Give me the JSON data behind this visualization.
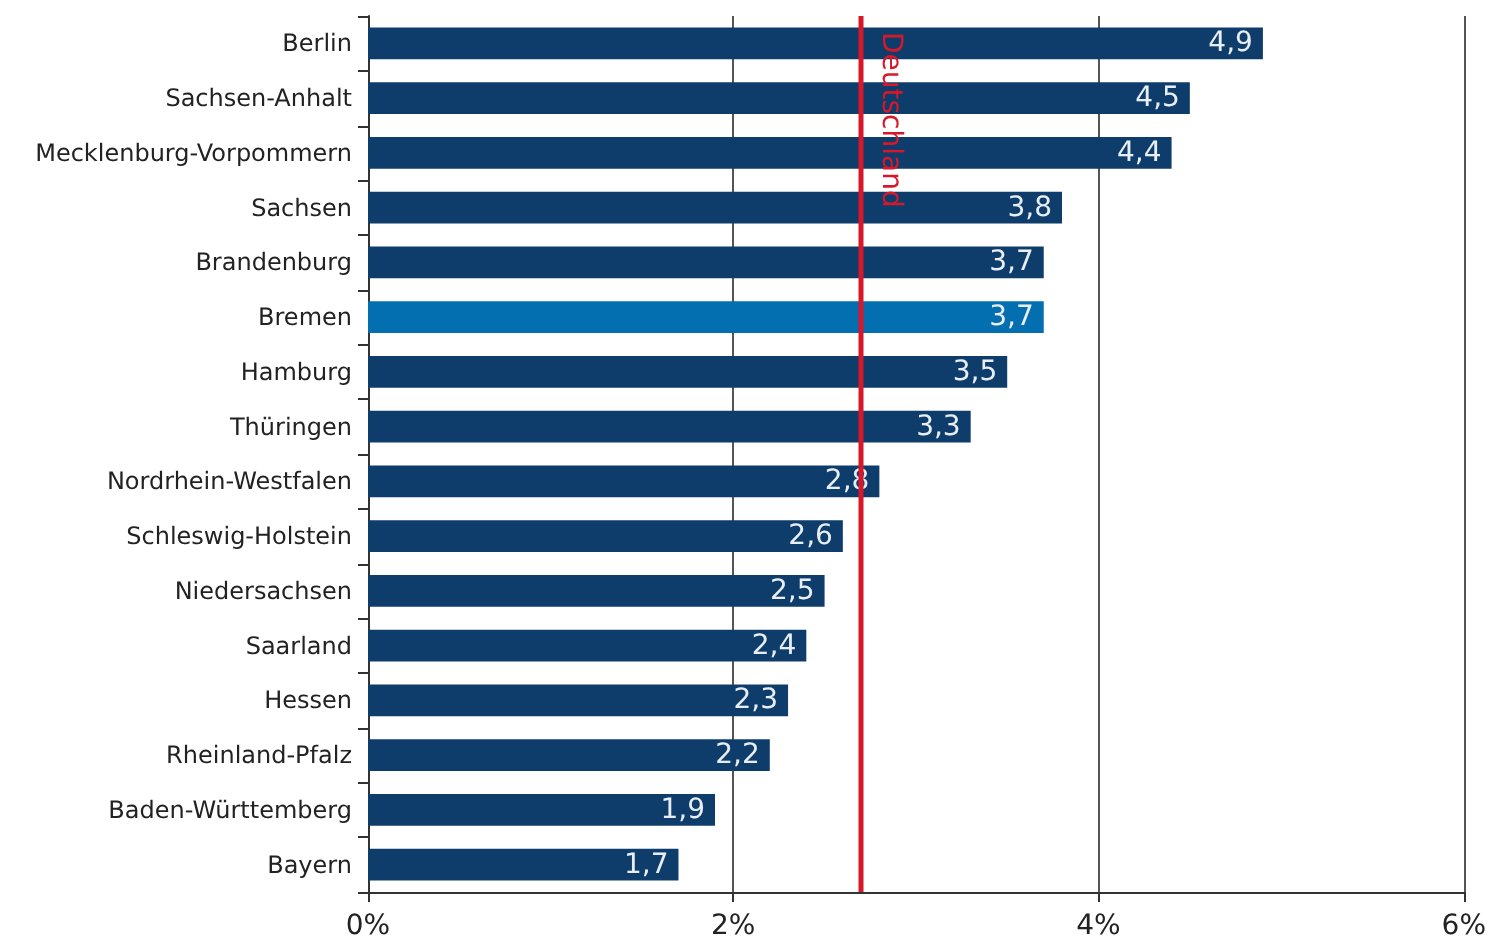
{
  "chart_data": {
    "type": "bar",
    "orientation": "horizontal",
    "categories": [
      "Berlin",
      "Sachsen-Anhalt",
      "Mecklenburg-Vorpommern",
      "Sachsen",
      "Brandenburg",
      "Bremen",
      "Hamburg",
      "Thüringen",
      "Nordrhein-Westfalen",
      "Schleswig-Holstein",
      "Niedersachsen",
      "Saarland",
      "Hessen",
      "Rheinland-Pfalz",
      "Baden-Württemberg",
      "Bayern"
    ],
    "values": [
      4.9,
      4.5,
      4.4,
      3.8,
      3.7,
      3.7,
      3.5,
      3.3,
      2.8,
      2.6,
      2.5,
      2.4,
      2.3,
      2.2,
      1.9,
      1.7
    ],
    "value_labels": [
      "4,9",
      "4,5",
      "4,4",
      "3,8",
      "3,7",
      "3,7",
      "3,5",
      "3,3",
      "2,8",
      "2,6",
      "2,5",
      "2,4",
      "2,3",
      "2,2",
      "1,9",
      "1,7"
    ],
    "colors": [
      "#0f3d6b",
      "#0f3d6b",
      "#0f3d6b",
      "#0f3d6b",
      "#0f3d6b",
      "#036eb0",
      "#0f3d6b",
      "#0f3d6b",
      "#0f3d6b",
      "#0f3d6b",
      "#0f3d6b",
      "#0f3d6b",
      "#0f3d6b",
      "#0f3d6b",
      "#0f3d6b",
      "#0f3d6b"
    ],
    "xlim": [
      0,
      6
    ],
    "xticks": [
      {
        "value": 0,
        "label": "0%"
      },
      {
        "value": 2,
        "label": "2%"
      },
      {
        "value": 4,
        "label": "4%"
      },
      {
        "value": 6,
        "label": "6%"
      }
    ],
    "grid": "x",
    "ref_lines": [
      {
        "axis": "x",
        "value": 2.7,
        "label": "Deutschland",
        "color": "#d7182a"
      }
    ]
  }
}
